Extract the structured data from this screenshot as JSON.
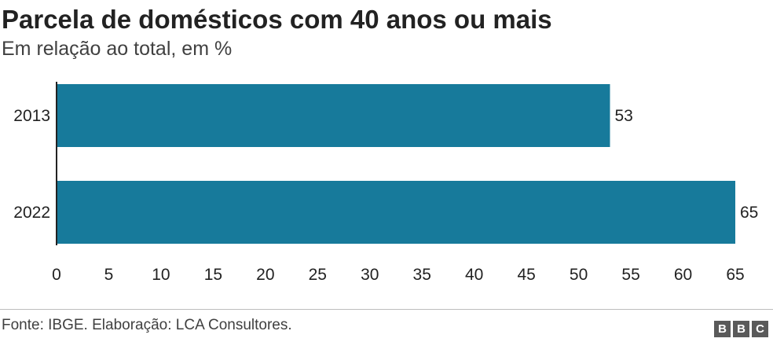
{
  "title": "Parcela de domésticos com 40 anos ou mais",
  "subtitle": "Em relação ao total, em %",
  "source": "Fonte: IBGE. Elaboração: LCA Consultores.",
  "logo": [
    "B",
    "B",
    "C"
  ],
  "colors": {
    "bar": "#177a9b",
    "axis": "#222222",
    "text": "#222222"
  },
  "chart_data": {
    "type": "bar",
    "orientation": "horizontal",
    "categories": [
      "2013",
      "2022"
    ],
    "values": [
      53,
      65
    ],
    "data_labels": [
      "53",
      "65"
    ],
    "title": "Parcela de domésticos com 40 anos ou mais",
    "subtitle": "Em relação ao total, em %",
    "xlim": [
      0,
      65
    ],
    "xticks": [
      0,
      5,
      10,
      15,
      20,
      25,
      30,
      35,
      40,
      45,
      50,
      55,
      60,
      65
    ],
    "grid": false,
    "legend": "none"
  }
}
